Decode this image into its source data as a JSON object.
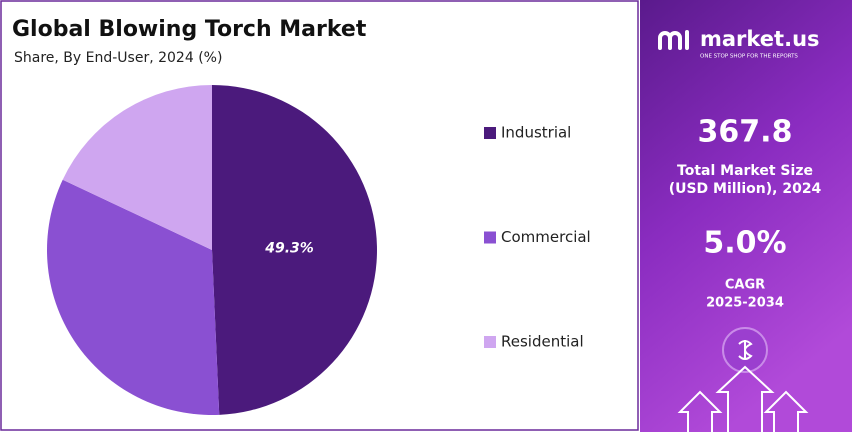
{
  "chart_data": {
    "type": "pie",
    "title": "Global Blowing Torch Market",
    "subtitle": "Share, By End-User, 2024 (%)",
    "categories": [
      "Industrial",
      "Commercial",
      "Residential"
    ],
    "values": [
      49.3,
      32.7,
      18.0
    ],
    "value_labels": [
      "49.3%",
      null,
      null
    ],
    "colors": [
      "#4b1a7c",
      "#8a50d2",
      "#cfa6f0"
    ],
    "legend": "right"
  },
  "side_panel": {
    "brand": "market.us",
    "tagline": "ONE STOP SHOP FOR THE REPORTS",
    "market_size": "367.8",
    "market_size_label_1": "Total Market Size",
    "market_size_label_2": "(USD Million), 2024",
    "cagr": "5.0%",
    "cagr_label_1": "CAGR",
    "cagr_label_2": "2025-2034"
  }
}
